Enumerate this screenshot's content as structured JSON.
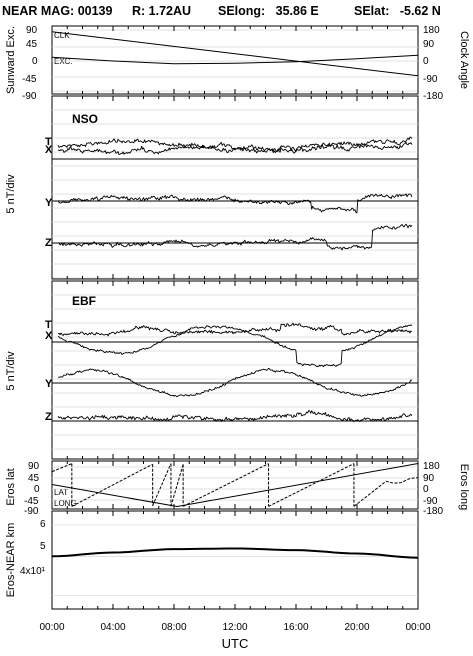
{
  "header": {
    "title": "NEAR MAG: 00139",
    "r": "R: 1.72AU",
    "selong": "SElong:   35.86 E",
    "selat": "SElat:   -5.62 N"
  },
  "chart_data": [
    {
      "type": "line",
      "panel": "sunward",
      "ylabel_left": "Sunward Exc.",
      "ylabel_right": "Clock Angle",
      "yticks_left": [
        "90",
        "45",
        "0",
        "-45",
        "-90"
      ],
      "yticks_right": [
        "180",
        "90",
        "0",
        "-90",
        "-180"
      ],
      "ylim_left": [
        -90,
        90
      ],
      "ylim_right": [
        -180,
        180
      ],
      "series": [
        {
          "name": "CLK",
          "axis": "right",
          "x": [
            0,
            24
          ],
          "y": [
            170,
            -95
          ]
        },
        {
          "name": "EXC.",
          "axis": "left",
          "x": [
            0,
            4,
            8,
            12,
            16,
            20,
            24
          ],
          "y": [
            8,
            -3,
            -11,
            -10,
            -5,
            4,
            14
          ]
        }
      ]
    },
    {
      "type": "line",
      "panel": "NSO",
      "name": "NSO",
      "ylabel": "5 nT/div",
      "channels": [
        "T",
        "X",
        "Y",
        "Z"
      ]
    },
    {
      "type": "line",
      "panel": "EBF",
      "name": "EBF",
      "ylabel": "5 nT/div",
      "channels": [
        "T",
        "X",
        "Y",
        "Z"
      ]
    },
    {
      "type": "line",
      "panel": "position",
      "ylabel_left": "Eros lat",
      "ylabel_right": "Eros long",
      "yticks_left": [
        "90",
        "45",
        "0",
        "-45",
        "-90"
      ],
      "yticks_right": [
        "180",
        "90",
        "0",
        "-90",
        "-180"
      ],
      "ylim_left": [
        -90,
        90
      ],
      "ylim_right": [
        -180,
        180
      ],
      "series": [
        {
          "name": "LAT",
          "axis": "left",
          "x": [
            0,
            8.2,
            24
          ],
          "y": [
            2,
            -88,
            88
          ]
        },
        {
          "name": "LONG",
          "axis": "right",
          "note": "sawtooth, wraps at +/-180",
          "segments": [
            [
              [
                0,
                110
              ],
              [
                1.3,
                175
              ]
            ],
            [
              [
                1.3,
                -175
              ],
              [
                6.6,
                170
              ]
            ],
            [
              [
                6.6,
                -170
              ],
              [
                7.8,
                175
              ]
            ],
            [
              [
                7.8,
                -175
              ],
              [
                8.6,
                170
              ]
            ],
            [
              [
                8.6,
                -175
              ],
              [
                14.2,
                175
              ]
            ],
            [
              [
                14.2,
                -175
              ],
              [
                19.8,
                175
              ]
            ],
            [
              [
                19.8,
                -175
              ],
              [
                21.9,
                30
              ],
              [
                22.4,
                15
              ],
              [
                22.9,
                20
              ],
              [
                23.5,
                55
              ],
              [
                24,
                60
              ]
            ]
          ]
        }
      ]
    },
    {
      "type": "line",
      "panel": "distance",
      "ylabel": "Eros-NEAR km",
      "yticks": [
        "6",
        "5",
        "4x10¹"
      ],
      "yscale": "log",
      "ylim": [
        37,
        65
      ],
      "series": [
        {
          "x": [
            0,
            4,
            8,
            12,
            16,
            20,
            24
          ],
          "y": [
            50.1,
            51.2,
            52.2,
            52.4,
            51.9,
            50.9,
            49.7
          ]
        }
      ]
    }
  ],
  "xaxis": {
    "label": "UTC",
    "ticks": [
      "00:00",
      "04:00",
      "08:00",
      "12:00",
      "16:00",
      "20:00",
      "00:00"
    ],
    "range_hours": [
      0,
      24
    ]
  }
}
